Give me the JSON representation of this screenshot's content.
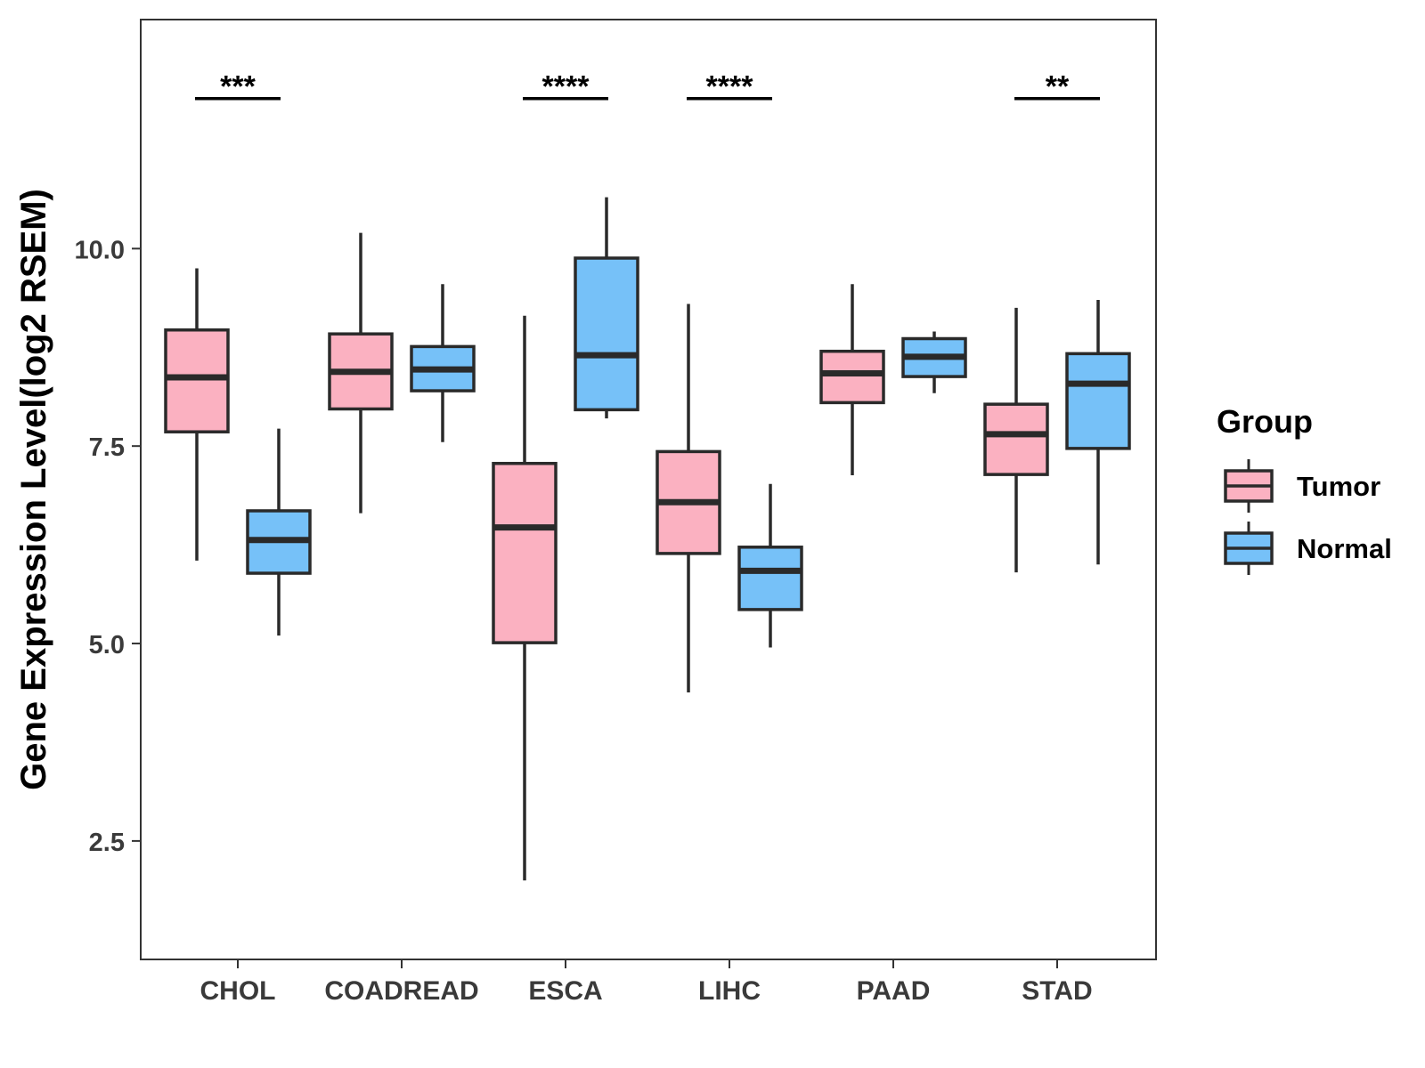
{
  "chart_data": {
    "type": "boxplot",
    "ylabel": "Gene Expression Level(log2 RSEM)",
    "xlabel": "",
    "ylim": [
      1.0,
      12.9
    ],
    "yticks": [
      2.5,
      5.0,
      7.5,
      10.0
    ],
    "ytick_labels": [
      "2.5",
      "5.0",
      "7.5",
      "10.0"
    ],
    "categories": [
      "CHOL",
      "COADREAD",
      "ESCA",
      "LIHC",
      "PAAD",
      "STAD"
    ],
    "legend": {
      "title": "Group",
      "position": "right",
      "entries": [
        {
          "name": "Tumor",
          "color": "#FBB1C1"
        },
        {
          "name": "Normal",
          "color": "#76C1F8"
        }
      ]
    },
    "series": [
      {
        "name": "Tumor",
        "color": "#FBB1C1",
        "boxes": [
          {
            "category": "CHOL",
            "whisker_low": 6.05,
            "q1": 7.68,
            "median": 8.37,
            "q3": 8.97,
            "whisker_high": 9.75
          },
          {
            "category": "COADREAD",
            "whisker_low": 6.65,
            "q1": 7.97,
            "median": 8.44,
            "q3": 8.92,
            "whisker_high": 10.2
          },
          {
            "category": "ESCA",
            "whisker_low": 2.0,
            "q1": 5.01,
            "median": 6.47,
            "q3": 7.28,
            "whisker_high": 9.15
          },
          {
            "category": "LIHC",
            "whisker_low": 4.38,
            "q1": 6.14,
            "median": 6.79,
            "q3": 7.43,
            "whisker_high": 9.3
          },
          {
            "category": "PAAD",
            "whisker_low": 7.13,
            "q1": 8.05,
            "median": 8.42,
            "q3": 8.7,
            "whisker_high": 9.55
          },
          {
            "category": "STAD",
            "whisker_low": 5.9,
            "q1": 7.14,
            "median": 7.65,
            "q3": 8.03,
            "whisker_high": 9.25
          }
        ]
      },
      {
        "name": "Normal",
        "color": "#76C1F8",
        "boxes": [
          {
            "category": "CHOL",
            "whisker_low": 5.1,
            "q1": 5.89,
            "median": 6.31,
            "q3": 6.68,
            "whisker_high": 7.72
          },
          {
            "category": "COADREAD",
            "whisker_low": 7.55,
            "q1": 8.2,
            "median": 8.47,
            "q3": 8.76,
            "whisker_high": 9.55
          },
          {
            "category": "ESCA",
            "whisker_low": 7.85,
            "q1": 7.96,
            "median": 8.65,
            "q3": 9.88,
            "whisker_high": 10.65
          },
          {
            "category": "LIHC",
            "whisker_low": 4.95,
            "q1": 5.43,
            "median": 5.92,
            "q3": 6.22,
            "whisker_high": 7.02
          },
          {
            "category": "PAAD",
            "whisker_low": 8.17,
            "q1": 8.38,
            "median": 8.63,
            "q3": 8.86,
            "whisker_high": 8.95
          },
          {
            "category": "STAD",
            "whisker_low": 6.0,
            "q1": 7.47,
            "median": 8.29,
            "q3": 8.67,
            "whisker_high": 9.35
          }
        ]
      }
    ],
    "significance": [
      {
        "category": "CHOL",
        "label": "***"
      },
      {
        "category": "ESCA",
        "label": "****"
      },
      {
        "category": "LIHC",
        "label": "****"
      },
      {
        "category": "STAD",
        "label": "**"
      }
    ],
    "significance_y": 11.9,
    "grid": false
  }
}
